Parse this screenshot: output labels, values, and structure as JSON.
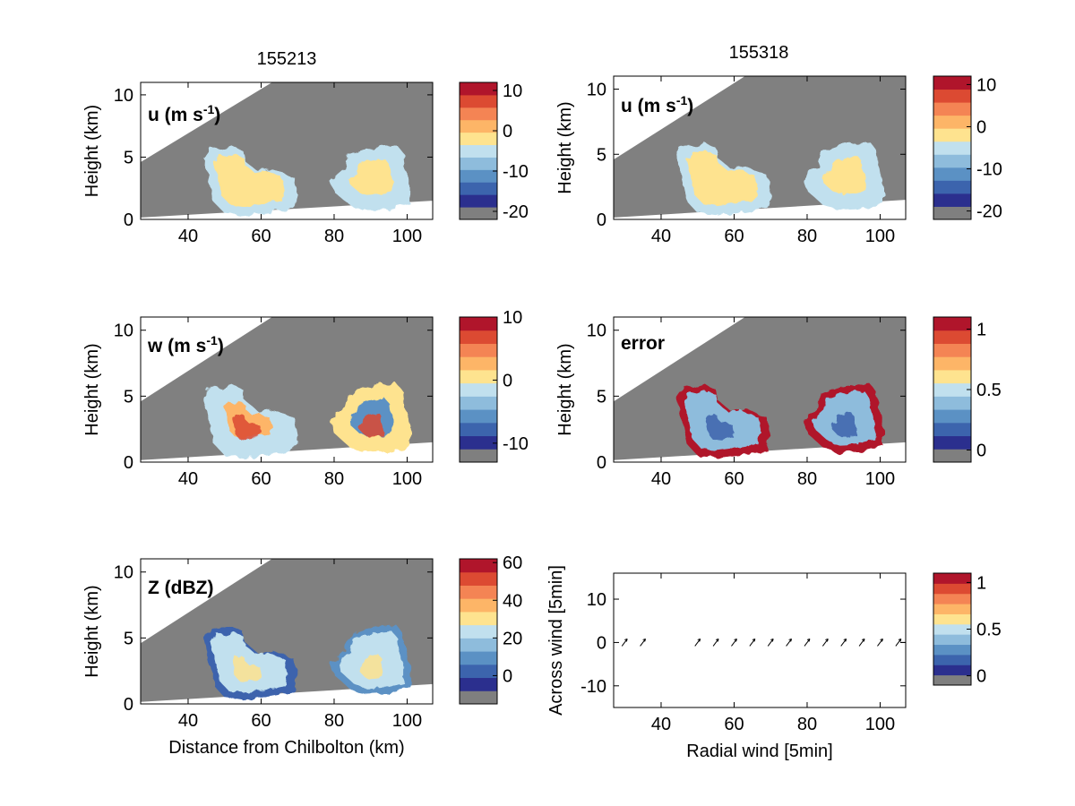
{
  "figure": {
    "titles": [
      "155213",
      "155318"
    ],
    "xlabel_bottom_left": "Distance from Chilbolton (km)"
  },
  "chart_data": [
    {
      "id": "u-left",
      "type": "heatmap",
      "title": "155213",
      "panel_label": "u (m s",
      "panel_label_sup": "-1",
      "panel_label_tail": ")",
      "ylabel": "Height (km)",
      "xlabel": "",
      "xlim": [
        27,
        107
      ],
      "ylim": [
        0,
        11
      ],
      "xticks": [
        40,
        60,
        80,
        100
      ],
      "yticks": [
        0,
        5,
        10
      ],
      "colorbar": {
        "levels": 11,
        "ticks": [
          10,
          0,
          -10,
          -20
        ],
        "range": [
          -22,
          12
        ]
      }
    },
    {
      "id": "u-right",
      "type": "heatmap",
      "title": "155318",
      "panel_label": "u (m s",
      "panel_label_sup": "-1",
      "panel_label_tail": ")",
      "ylabel": "Height (km)",
      "xlabel": "",
      "xlim": [
        27,
        107
      ],
      "ylim": [
        0,
        11
      ],
      "xticks": [
        40,
        60,
        80,
        100
      ],
      "yticks": [
        0,
        5,
        10
      ],
      "colorbar": {
        "levels": 11,
        "ticks": [
          10,
          0,
          -10,
          -20
        ],
        "range": [
          -22,
          12
        ]
      }
    },
    {
      "id": "w-left",
      "type": "heatmap",
      "panel_label": "w (m s",
      "panel_label_sup": "-1",
      "panel_label_tail": ")",
      "ylabel": "Height (km)",
      "xlabel": "",
      "xlim": [
        27,
        107
      ],
      "ylim": [
        0,
        11
      ],
      "xticks": [
        40,
        60,
        80,
        100
      ],
      "yticks": [
        0,
        5,
        10
      ],
      "colorbar": {
        "levels": 11,
        "ticks": [
          10,
          0,
          -10
        ],
        "range": [
          -13,
          10
        ]
      }
    },
    {
      "id": "error-right",
      "type": "heatmap",
      "panel_label": "error",
      "ylabel": "Height (km)",
      "xlabel": "",
      "xlim": [
        27,
        107
      ],
      "ylim": [
        0,
        11
      ],
      "xticks": [
        40,
        60,
        80,
        100
      ],
      "yticks": [
        0,
        5,
        10
      ],
      "colorbar": {
        "levels": 11,
        "ticks": [
          1,
          0.5,
          0
        ],
        "range": [
          -0.1,
          1.1
        ]
      }
    },
    {
      "id": "z-left",
      "type": "heatmap",
      "panel_label": "Z (dBZ)",
      "ylabel": "Height (km)",
      "xlabel": "Distance from Chilbolton (km)",
      "xlim": [
        27,
        107
      ],
      "ylim": [
        0,
        11
      ],
      "xticks": [
        40,
        60,
        80,
        100
      ],
      "yticks": [
        0,
        5,
        10
      ],
      "colorbar": {
        "levels": 11,
        "ticks": [
          60,
          40,
          20,
          0
        ],
        "range": [
          -15,
          62
        ]
      }
    },
    {
      "id": "wind-right",
      "type": "scatter",
      "ylabel": "Across wind [5min]",
      "xlabel": "Radial wind [5min]",
      "xlim": [
        27,
        107
      ],
      "ylim": [
        -15,
        16
      ],
      "xticks": [
        40,
        60,
        80,
        100
      ],
      "yticks": [
        10,
        0,
        -10
      ],
      "arrows": {
        "x": [
          30,
          35,
          50,
          55,
          60,
          65,
          70,
          75,
          80,
          85,
          90,
          95,
          100,
          105
        ],
        "y": [
          0,
          0,
          0,
          0,
          0,
          0,
          0,
          0,
          0,
          0,
          0,
          0,
          0,
          0
        ]
      },
      "colorbar": {
        "levels": 11,
        "ticks": [
          1,
          0.5,
          0
        ],
        "range": [
          -0.1,
          1.1
        ]
      }
    }
  ],
  "colormap": [
    "#7f7f7f",
    "#2b2f8e",
    "#3c64ad",
    "#5b91c4",
    "#8ebcdc",
    "#c1e0ee",
    "#fee38f",
    "#fdb567",
    "#f48454",
    "#dc4a32",
    "#b0152b",
    "#a50026"
  ]
}
